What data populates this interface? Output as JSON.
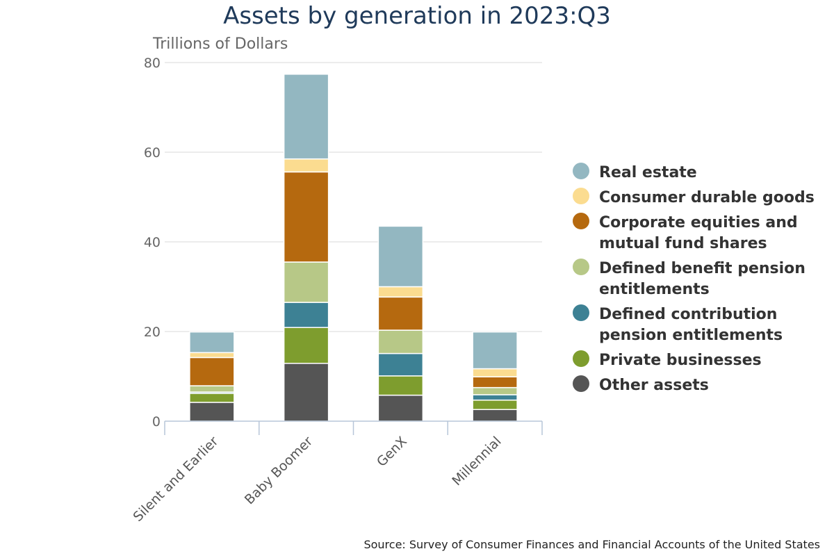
{
  "chart_data": {
    "type": "bar",
    "stacked": true,
    "title": "Assets by generation in 2023:Q3",
    "ylabel": "Trillions of Dollars",
    "xlabel": "",
    "ylim": [
      0,
      80
    ],
    "yticks": [
      0,
      20,
      40,
      60,
      80
    ],
    "grid": true,
    "legend_position": "right",
    "categories": [
      "Silent and Earlier",
      "Baby Boomer",
      "GenX",
      "Millennial"
    ],
    "series": [
      {
        "name": "Other assets",
        "color": "#555555",
        "values": [
          4.2,
          12.9,
          5.8,
          2.6
        ]
      },
      {
        "name": "Private businesses",
        "color": "#7e9d2e",
        "values": [
          2.0,
          8.0,
          4.3,
          2.1
        ]
      },
      {
        "name": "Defined contribution pension entitlements",
        "color": "#3d8194",
        "values": [
          0.3,
          5.6,
          5.0,
          1.2
        ]
      },
      {
        "name": "Defined benefit pension entitlements",
        "color": "#b7c887",
        "values": [
          1.4,
          9.0,
          5.2,
          1.6
        ]
      },
      {
        "name": "Corporate equities and mutual fund shares",
        "color": "#b5690f",
        "values": [
          6.3,
          20.1,
          7.4,
          2.4
        ]
      },
      {
        "name": "Consumer durable goods",
        "color": "#fbdc90",
        "values": [
          1.1,
          2.9,
          2.3,
          1.8
        ]
      },
      {
        "name": "Real estate",
        "color": "#93b7c1",
        "values": [
          4.6,
          18.9,
          13.5,
          8.2
        ]
      }
    ],
    "legend": [
      {
        "lines": [
          "Real estate"
        ],
        "color": "#93b7c1"
      },
      {
        "lines": [
          "Consumer durable goods"
        ],
        "color": "#fbdc90"
      },
      {
        "lines": [
          "Corporate equities and",
          "mutual fund shares"
        ],
        "color": "#b5690f"
      },
      {
        "lines": [
          "Defined benefit pension",
          "entitlements"
        ],
        "color": "#b7c887"
      },
      {
        "lines": [
          "Defined contribution",
          "pension entitlements"
        ],
        "color": "#3d8194"
      },
      {
        "lines": [
          "Private businesses"
        ],
        "color": "#7e9d2e"
      },
      {
        "lines": [
          "Other assets"
        ],
        "color": "#555555"
      }
    ],
    "source": "Source: Survey of Consumer Finances and Financial Accounts of the United States"
  }
}
